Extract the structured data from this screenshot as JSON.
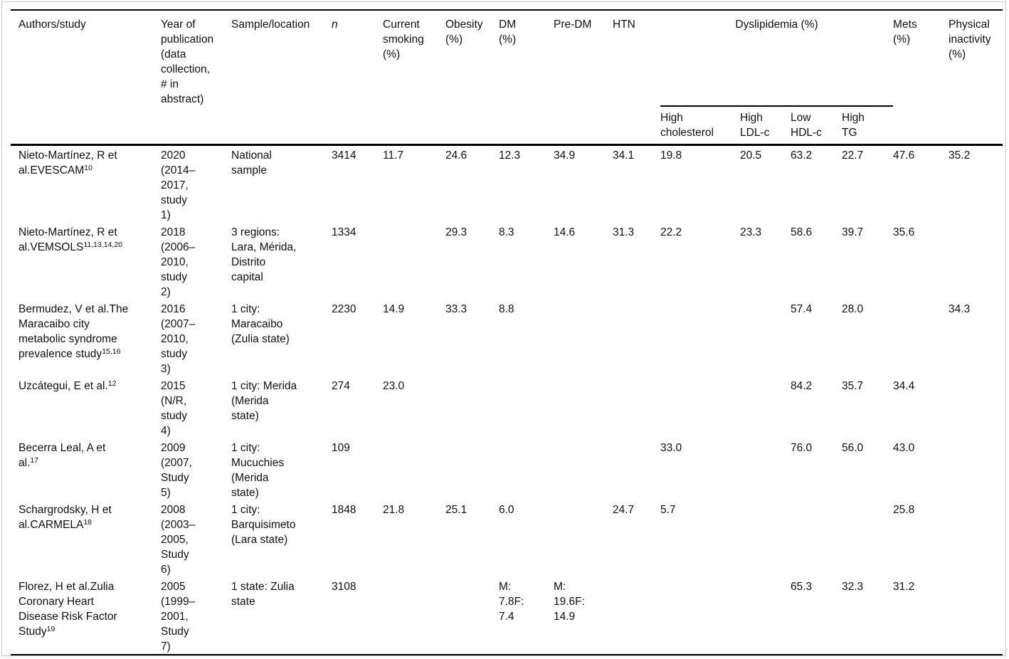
{
  "header": {
    "author": "Authors/study",
    "year": "Year of\npublication\n(data\ncollection,\n# in\nabstract)",
    "location": "Sample/location",
    "n": "n",
    "smoking": "Current\nsmoking\n(%)",
    "obesity": "Obesity\n(%)",
    "dm": "DM\n(%)",
    "predm": "Pre-DM",
    "htn": "HTN",
    "dyslipidemia": "Dyslipidemia (%)",
    "high_cholesterol": "High\ncholesterol",
    "high_ldl": "High\nLDL-c",
    "low_hdl": "Low\nHDL-c",
    "high_tg": "High\nTG",
    "mets": "Mets\n(%)",
    "inactivity": "Physical\ninactivity\n(%)"
  },
  "value_keys": [
    "n",
    "smoking",
    "obesity",
    "dm",
    "predm",
    "htn",
    "high-cholesterol",
    "high-ldl",
    "low-hdl",
    "high-tg",
    "mets",
    "inactivity"
  ],
  "rows": [
    {
      "author": {
        "text": "Nieto-Martínez, R et\nal.EVESCAM",
        "sup": "10"
      },
      "year": "2020\n(2014–\n2017,\nstudy\n1)",
      "location": "National\nsample",
      "values": [
        "3414",
        "11.7",
        "24.6",
        "12.3",
        "34.9",
        "34.1",
        "19.8",
        "20.5",
        "63.2",
        "22.7",
        "47.6",
        "35.2"
      ]
    },
    {
      "author": {
        "text": "Nieto-Martínez, R et\nal.VEMSOLS",
        "sup": "11,13,14,20"
      },
      "year": "2018\n(2006–\n2010,\nstudy\n2)",
      "location": "3 regions:\nLara, Mérida,\nDistrito\ncapital",
      "values": [
        "1334",
        "",
        "29.3",
        "8.3",
        "14.6",
        "31.3",
        "22.2",
        "23.3",
        "58.6",
        "39.7",
        "35.6",
        ""
      ]
    },
    {
      "author": {
        "text": "Bermudez, V et al.The\nMaracaibo city\nmetabolic syndrome\nprevalence study",
        "sup": "15,16"
      },
      "year": "2016\n(2007–\n2010,\nstudy\n3)",
      "location": "1 city:\nMaracaibo\n(Zulia state)",
      "values": [
        "2230",
        "14.9",
        "33.3",
        "8.8",
        "",
        "",
        "",
        "",
        "57.4",
        "28.0",
        "",
        "34.3"
      ]
    },
    {
      "author": {
        "text": "Uzcátegui, E et al.",
        "sup": "12"
      },
      "year": "2015\n(N/R,\nstudy\n4)",
      "location": "1 city: Merida\n(Merida\nstate)",
      "values": [
        "274",
        "23.0",
        "",
        "",
        "",
        "",
        "",
        "",
        "84.2",
        "35.7",
        "34.4",
        ""
      ]
    },
    {
      "author": {
        "text": "Becerra Leal, A et\nal.",
        "sup": "17"
      },
      "year": "2009\n(2007,\nStudy\n5)",
      "location": "1 city:\nMucuchies\n(Merida\nstate)",
      "values": [
        "109",
        "",
        "",
        "",
        "",
        "",
        "33.0",
        "",
        "76.0",
        "56.0",
        "43.0",
        ""
      ]
    },
    {
      "author": {
        "text": "Schargrodsky, H et\nal.CARMELA",
        "sup": "18"
      },
      "year": "2008\n(2003–\n2005,\nStudy\n6)",
      "location": "1 city:\nBarquisimeto\n(Lara state)",
      "values": [
        "1848",
        "21.8",
        "25.1",
        "6.0",
        "",
        "24.7",
        "5.7",
        "",
        "",
        "",
        "25.8",
        ""
      ]
    },
    {
      "author": {
        "text": "Florez, H et al.Zulia\nCoronary Heart\nDisease Risk Factor\nStudy",
        "sup": "19"
      },
      "year": "2005\n(1999–\n2001,\nStudy\n7)",
      "location": "1 state: Zulia\nstate",
      "values": [
        "3108",
        "",
        "",
        "M:\n7.8F:\n7.4",
        "M:\n19.6F:\n14.9",
        "",
        "",
        "",
        "65.3",
        "32.3",
        "31.2",
        ""
      ]
    }
  ],
  "colors": {
    "rule": "#000000",
    "frame_border": "#c9c9c9",
    "text": "#101010",
    "background": "#ffffff"
  }
}
